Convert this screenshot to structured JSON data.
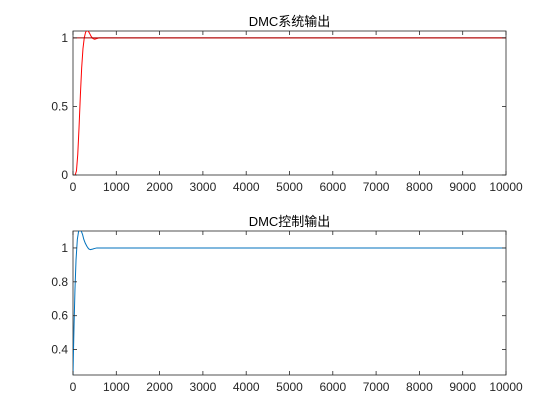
{
  "figure": {
    "background": "#ffffff",
    "axes_color": "#262626"
  },
  "chart_data": [
    {
      "type": "line",
      "title": "DMC系统输出",
      "xlabel": "",
      "ylabel": "",
      "xlim": [
        0,
        10000
      ],
      "ylim": [
        0,
        1.05
      ],
      "xticks": [
        0,
        1000,
        2000,
        3000,
        4000,
        5000,
        6000,
        7000,
        8000,
        9000,
        10000
      ],
      "xtick_labels": [
        "0",
        "1000",
        "2000",
        "3000",
        "4000",
        "5000",
        "6000",
        "7000",
        "8000",
        "9000",
        "10000"
      ],
      "yticks": [
        0,
        0.5,
        1
      ],
      "ytick_labels": [
        "0",
        "0.5",
        "1"
      ],
      "grid": false,
      "series": [
        {
          "color": "#ff0000",
          "x": [
            0,
            50,
            80,
            110,
            140,
            170,
            200,
            230,
            260,
            290,
            320,
            350,
            380,
            420,
            460,
            500,
            550,
            600,
            700,
            800,
            1000,
            2000,
            4000,
            6000,
            8000,
            10000
          ],
          "y": [
            0,
            0,
            0.03,
            0.15,
            0.35,
            0.58,
            0.78,
            0.92,
            1.0,
            1.04,
            1.055,
            1.05,
            1.035,
            1.01,
            0.995,
            0.99,
            0.995,
            1.0,
            1.0,
            1.0,
            1.0,
            1.0,
            1.0,
            1.0,
            1.0,
            1.0
          ]
        },
        {
          "color": "#a00000",
          "x": [
            0,
            10000
          ],
          "y": [
            1,
            1
          ]
        }
      ]
    },
    {
      "type": "line",
      "title": "DMC控制输出",
      "xlabel": "",
      "ylabel": "",
      "xlim": [
        0,
        10000
      ],
      "ylim": [
        0.25,
        1.1
      ],
      "xticks": [
        0,
        1000,
        2000,
        3000,
        4000,
        5000,
        6000,
        7000,
        8000,
        9000,
        10000
      ],
      "xtick_labels": [
        "0",
        "1000",
        "2000",
        "3000",
        "4000",
        "5000",
        "6000",
        "7000",
        "8000",
        "9000",
        "10000"
      ],
      "yticks": [
        0.4,
        0.6,
        0.8,
        1
      ],
      "ytick_labels": [
        "0.4",
        "0.6",
        "0.8",
        "1"
      ],
      "grid": false,
      "series": [
        {
          "color": "#0072bd",
          "x": [
            0,
            10,
            25,
            45,
            70,
            100,
            130,
            160,
            190,
            220,
            250,
            280,
            320,
            360,
            400,
            450,
            500,
            550,
            600,
            700,
            800,
            1000,
            2000,
            4000,
            6000,
            8000,
            10000
          ],
          "y": [
            0.25,
            0.38,
            0.55,
            0.75,
            0.93,
            1.05,
            1.1,
            1.11,
            1.1,
            1.08,
            1.05,
            1.03,
            1.01,
            0.995,
            0.99,
            0.993,
            0.997,
            1.0,
            1.0,
            1.0,
            1.0,
            1.0,
            1.0,
            1.0,
            1.0,
            1.0,
            1.0
          ]
        }
      ]
    }
  ]
}
